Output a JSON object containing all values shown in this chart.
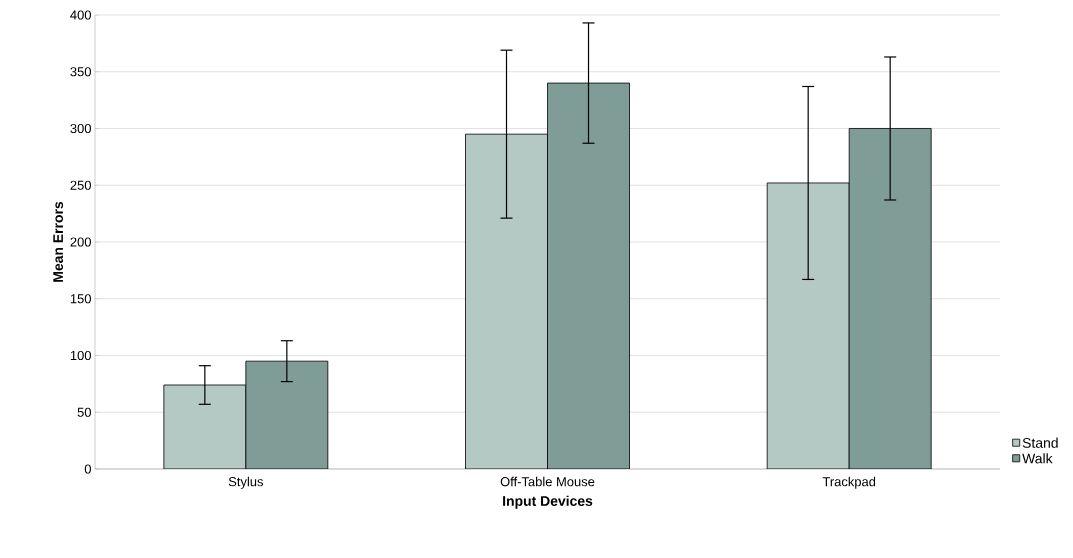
{
  "chart_data": {
    "type": "bar",
    "xlabel": "Input Devices",
    "ylabel": "Mean Errors",
    "categories": [
      "Stylus",
      "Off-Table Mouse",
      "Trackpad"
    ],
    "series": [
      {
        "name": "Stand",
        "color": "#b4c8c4",
        "values": [
          74,
          295,
          252
        ],
        "errors": [
          17,
          74,
          85
        ]
      },
      {
        "name": "Walk",
        "color": "#7f9c96",
        "values": [
          95,
          340,
          300
        ],
        "errors": [
          18,
          53,
          63
        ]
      }
    ],
    "ylim": [
      0,
      400
    ],
    "yticks": [
      0,
      50,
      100,
      150,
      200,
      250,
      300,
      350,
      400
    ],
    "grid": "y",
    "legend": "right"
  }
}
